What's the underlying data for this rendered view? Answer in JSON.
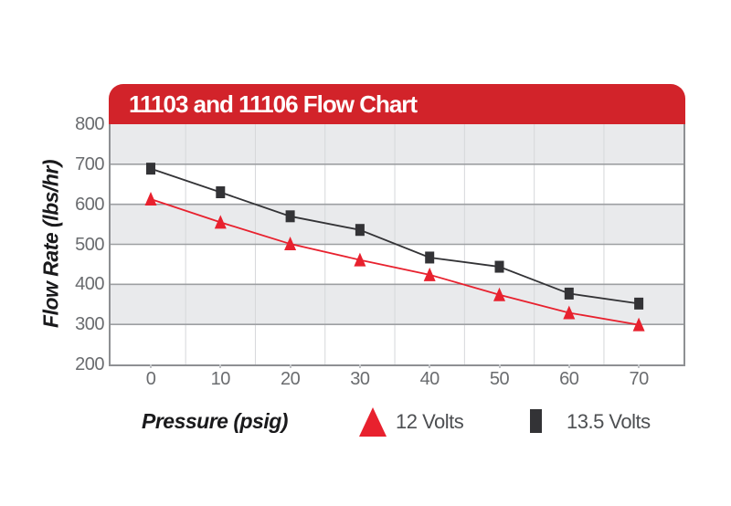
{
  "chart_data": {
    "type": "line",
    "title": "11103 and 11106 Flow Chart",
    "xlabel": "Pressure (psig)",
    "ylabel": "Flow Rate (lbs/hr)",
    "x": [
      0,
      10,
      20,
      30,
      40,
      50,
      60,
      70
    ],
    "y_ticks": [
      800,
      700,
      600,
      500,
      400,
      300,
      200
    ],
    "ylim": [
      200,
      800
    ],
    "xlim": [
      0,
      70
    ],
    "series": [
      {
        "name": "12 Volts",
        "marker": "triangle",
        "color": "#E8212E",
        "values": [
          613,
          555,
          501,
          461,
          424,
          374,
          329,
          299
        ]
      },
      {
        "name": "13.5 Volts",
        "marker": "square",
        "color": "#333336",
        "values": [
          689,
          630,
          570,
          536,
          467,
          444,
          377,
          352
        ]
      }
    ],
    "grid": "horizontal gridlines with alternating gray bands; faint vertical gridlines midway between ticks",
    "legend_position": "bottom",
    "colors": {
      "banner_red": "#D2232A",
      "title_text": "#FFFFFF",
      "band_gray": "#E9EAEC",
      "gridline_gray": "#9D9FA2",
      "vertical_gridline_gray": "#D6D7DA",
      "plot_border_gray": "#8E9093",
      "tick_label_gray": "#6A6C6F",
      "legend_text_gray": "#4D4F52",
      "axis_title_black": "#1A1A1C",
      "series_red": "#E8212E",
      "series_black": "#333336"
    }
  }
}
